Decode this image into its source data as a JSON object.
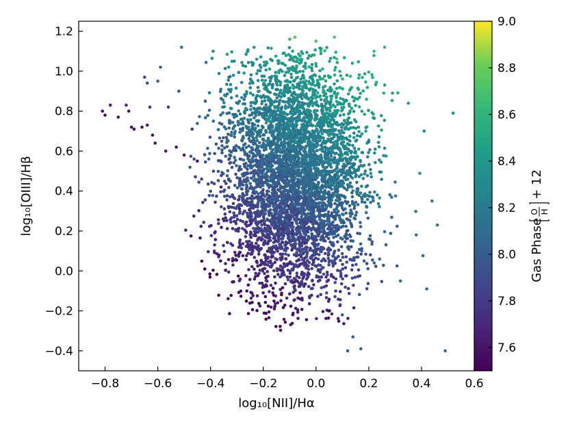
{
  "chart_data": {
    "type": "scatter",
    "xlabel": "log₁₀[NII]/Hα",
    "ylabel": "log₁₀[OIII]/Hβ",
    "xlim": [
      -0.9,
      0.6
    ],
    "ylim": [
      -0.5,
      1.25
    ],
    "x_ticks": [
      -0.8,
      -0.6,
      -0.4,
      -0.2,
      0.0,
      0.2,
      0.4,
      0.6
    ],
    "x_tick_labels": [
      "−0.8",
      "−0.6",
      "−0.4",
      "−0.2",
      "0.0",
      "0.2",
      "0.4",
      "0.6"
    ],
    "y_ticks": [
      -0.4,
      -0.2,
      0.0,
      0.2,
      0.4,
      0.6,
      0.8,
      1.0,
      1.2
    ],
    "y_tick_labels": [
      "−0.4",
      "−0.2",
      "0.0",
      "0.2",
      "0.4",
      "0.6",
      "0.8",
      "1.0",
      "1.2"
    ],
    "colorbar": {
      "label_prefix": "Gas Phase",
      "label_numerator": "O",
      "label_denominator": "H",
      "label_suffix": "+ 12",
      "range": [
        7.5,
        9.0
      ],
      "ticks": [
        7.6,
        7.8,
        8.0,
        8.2,
        8.4,
        8.6,
        8.8,
        9.0
      ],
      "tick_labels": [
        "7.6",
        "7.8",
        "8.0",
        "8.2",
        "8.4",
        "8.6",
        "8.8",
        "9.0"
      ],
      "colormap": "viridis"
    },
    "grid": false,
    "n_points_approx": 5000,
    "series": [
      {
        "points": [
          [
            -0.81,
            0.8,
            7.58
          ],
          [
            -0.8,
            0.78,
            7.56
          ],
          [
            -0.78,
            0.83,
            7.62
          ],
          [
            -0.75,
            0.77,
            7.6
          ],
          [
            -0.72,
            0.83,
            7.66
          ],
          [
            -0.71,
            0.8,
            7.58
          ],
          [
            -0.7,
            0.72,
            7.56
          ],
          [
            -0.69,
            0.71,
            7.55
          ],
          [
            -0.66,
            0.72,
            7.56
          ],
          [
            -0.65,
            0.97,
            7.9
          ],
          [
            -0.64,
            0.94,
            7.88
          ],
          [
            -0.64,
            0.73,
            7.62
          ],
          [
            -0.63,
            0.82,
            7.72
          ],
          [
            -0.62,
            0.68,
            7.56
          ],
          [
            -0.61,
            0.64,
            7.58
          ],
          [
            -0.6,
            0.95,
            7.96
          ],
          [
            -0.59,
            1.02,
            8.04
          ],
          [
            -0.57,
            0.6,
            7.62
          ],
          [
            -0.56,
            0.82,
            7.8
          ],
          [
            -0.53,
            0.62,
            7.6
          ],
          [
            -0.52,
            0.9,
            7.96
          ],
          [
            -0.51,
            1.12,
            8.2
          ],
          [
            -0.5,
            0.58,
            7.6
          ],
          [
            -0.47,
            0.71,
            7.72
          ],
          [
            -0.45,
            0.55,
            7.56
          ],
          [
            -0.42,
            0.85,
            7.98
          ],
          [
            -0.39,
            1.1,
            8.26
          ],
          [
            -0.36,
            0.42,
            7.64
          ],
          [
            -0.33,
            0.97,
            8.12
          ],
          [
            -0.31,
            1.05,
            8.28
          ],
          [
            -0.29,
            0.31,
            7.66
          ],
          [
            -0.25,
            0.25,
            7.7
          ],
          [
            -0.22,
            0.16,
            7.74
          ],
          [
            -0.19,
            0.05,
            7.78
          ],
          [
            -0.15,
            0.94,
            8.3
          ],
          [
            -0.12,
            -0.02,
            7.86
          ],
          [
            -0.1,
            1.16,
            8.62
          ],
          [
            -0.08,
            1.17,
            8.74
          ],
          [
            -0.05,
            -0.07,
            7.88
          ],
          [
            0.0,
            1.15,
            8.7
          ],
          [
            0.04,
            -0.11,
            7.94
          ],
          [
            0.07,
            1.17,
            8.72
          ],
          [
            0.1,
            -0.22,
            7.96
          ],
          [
            0.12,
            -0.4,
            7.98
          ],
          [
            0.14,
            -0.33,
            8.02
          ],
          [
            0.17,
            -0.39,
            7.98
          ],
          [
            0.22,
            1.1,
            8.66
          ],
          [
            0.26,
            1.12,
            8.62
          ],
          [
            0.29,
            0.89,
            8.44
          ],
          [
            0.32,
            -0.05,
            8.1
          ],
          [
            0.35,
            0.84,
            8.4
          ],
          [
            0.38,
            0.18,
            8.16
          ],
          [
            0.41,
            0.7,
            8.3
          ],
          [
            0.42,
            -0.09,
            8.1
          ],
          [
            0.44,
            0.35,
            8.16
          ],
          [
            0.46,
            0.23,
            8.18
          ],
          [
            0.49,
            -0.4,
            8.1
          ],
          [
            0.52,
            0.79,
            8.32
          ]
        ]
      }
    ]
  }
}
